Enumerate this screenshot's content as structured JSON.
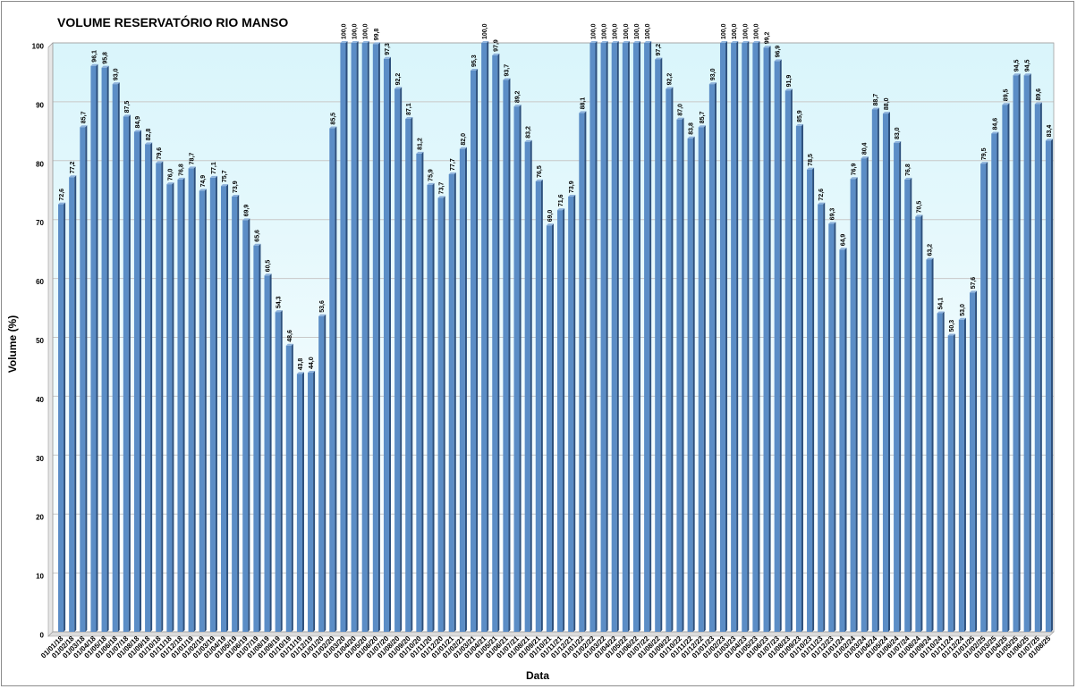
{
  "chart_data": {
    "type": "bar",
    "title": "VOLUME RESERVATÓRIO RIO MANSO",
    "xlabel": "Data",
    "ylabel": "Volume (%)",
    "ylim": [
      0,
      100
    ],
    "yticks": [
      0,
      10,
      20,
      30,
      40,
      50,
      60,
      70,
      80,
      90,
      100
    ],
    "grid": true,
    "legend": "none",
    "colors": {
      "bar_front": "#5b8dc6",
      "bar_side": "#2c4f7c",
      "bar_top": "#8fb3dc",
      "plot_bg_top": "#d9f5fb",
      "plot_bg_bottom": "#ffffff",
      "gridline": "#c8c8c8"
    },
    "categories": [
      "01/01/18",
      "01/02/18",
      "01/03/18",
      "01/04/18",
      "01/05/18",
      "01/06/18",
      "01/07/18",
      "01/08/18",
      "01/09/18",
      "01/10/18",
      "01/11/18",
      "01/12/18",
      "01/01/19",
      "01/02/19",
      "01/03/19",
      "01/04/19",
      "01/05/19",
      "01/06/19",
      "01/07/19",
      "01/08/19",
      "01/09/19",
      "01/10/19",
      "01/11/19",
      "01/12/19",
      "01/01/20",
      "01/02/20",
      "01/03/20",
      "01/04/20",
      "01/05/20",
      "01/06/20",
      "01/07/20",
      "01/08/20",
      "01/09/20",
      "01/10/20",
      "01/11/20",
      "01/12/20",
      "01/01/21",
      "01/02/21",
      "01/03/21",
      "01/04/21",
      "01/05/21",
      "01/06/21",
      "01/07/21",
      "01/08/21",
      "01/09/21",
      "01/10/21",
      "01/11/21",
      "01/12/21",
      "01/01/22",
      "01/02/22",
      "01/03/22",
      "01/04/22",
      "01/05/22",
      "01/06/22",
      "01/07/22",
      "01/08/22",
      "01/09/22",
      "01/10/22",
      "01/11/22",
      "01/12/22",
      "01/01/23",
      "01/02/23",
      "01/03/23",
      "01/04/23",
      "01/05/23",
      "01/06/23",
      "01/07/23",
      "01/08/23",
      "01/09/23",
      "01/10/23",
      "01/11/23",
      "01/12/23",
      "01/01/24",
      "01/02/24",
      "01/03/24",
      "01/04/24",
      "01/05/24",
      "01/06/24",
      "01/07/24",
      "01/08/24",
      "01/09/24",
      "01/10/24",
      "01/11/24",
      "01/12/24",
      "01/01/25",
      "01/02/25",
      "01/03/25",
      "01/04/25",
      "01/05/25",
      "01/06/25",
      "01/07/25",
      "01/08/25"
    ],
    "values": [
      72.6,
      77.2,
      85.7,
      96.1,
      95.8,
      93.0,
      87.5,
      84.9,
      82.8,
      79.6,
      76.0,
      76.8,
      78.7,
      74.9,
      77.1,
      75.7,
      73.9,
      69.9,
      65.6,
      60.5,
      54.3,
      48.6,
      43.8,
      44.0,
      53.6,
      85.5,
      100.0,
      100.0,
      100.0,
      99.8,
      97.3,
      92.2,
      87.1,
      81.2,
      75.9,
      73.7,
      77.7,
      82.0,
      95.3,
      100.0,
      97.9,
      93.7,
      89.2,
      83.2,
      76.5,
      69.0,
      71.6,
      73.9,
      88.1,
      100.0,
      100.0,
      100.0,
      100.0,
      100.0,
      100.0,
      97.2,
      92.2,
      87.0,
      83.8,
      85.7,
      93.0,
      100.0,
      100.0,
      100.0,
      100.0,
      99.2,
      96.9,
      91.9,
      85.9,
      78.5,
      72.6,
      69.3,
      64.9,
      76.9,
      80.4,
      88.7,
      88.0,
      83.0,
      76.8,
      70.5,
      63.2,
      54.1,
      50.3,
      53.0,
      57.6,
      79.5,
      84.6,
      89.5,
      94.5,
      94.5,
      89.6,
      83.4
    ],
    "data_labels": [
      "72,6",
      "77,2",
      "85,7",
      "96,1",
      "95,8",
      "93,0",
      "87,5",
      "84,9",
      "82,8",
      "79,6",
      "76,0",
      "76,8",
      "78,7",
      "74,9",
      "77,1",
      "75,7",
      "73,9",
      "69,9",
      "65,6",
      "60,5",
      "54,3",
      "48,6",
      "43,8",
      "44,0",
      "53,6",
      "85,5",
      "100,0",
      "100,0",
      "100,0",
      "99,8",
      "97,3",
      "92,2",
      "87,1",
      "81,2",
      "75,9",
      "73,7",
      "77,7",
      "82,0",
      "95,3",
      "100,0",
      "97,9",
      "93,7",
      "89,2",
      "83,2",
      "76,5",
      "69,0",
      "71,6",
      "73,9",
      "88,1",
      "100,0",
      "100,0",
      "100,0",
      "100,0",
      "100,0",
      "100,0",
      "97,2",
      "92,2",
      "87,0",
      "83,8",
      "85,7",
      "93,0",
      "100,0",
      "100,0",
      "100,0",
      "100,0",
      "99,2",
      "96,9",
      "91,9",
      "85,9",
      "78,5",
      "72,6",
      "69,3",
      "64,9",
      "76,9",
      "80,4",
      "88,7",
      "88,0",
      "83,0",
      "76,8",
      "70,5",
      "63,2",
      "54,1",
      "50,3",
      "53,0",
      "57,6",
      "79,5",
      "84,6",
      "89,5",
      "94,5",
      "94,5",
      "89,6",
      "83,4"
    ]
  }
}
